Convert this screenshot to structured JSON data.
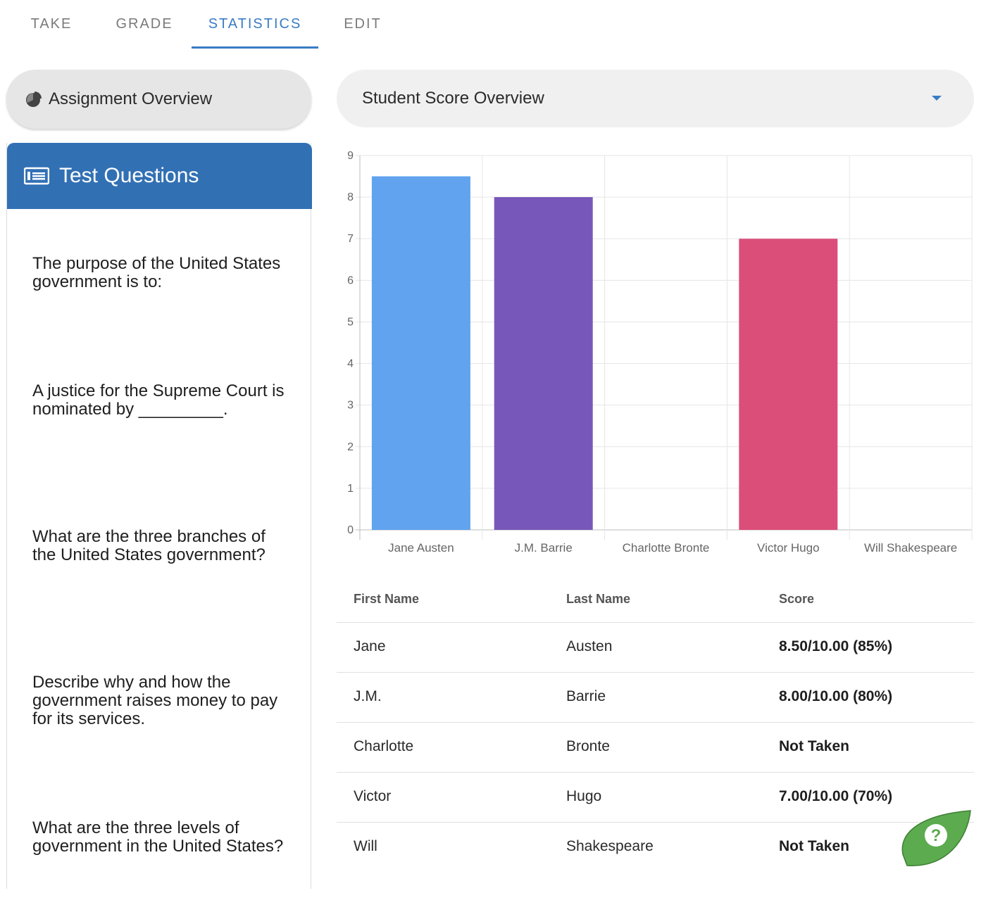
{
  "tabs": [
    {
      "label": "TAKE",
      "active": false
    },
    {
      "label": "GRADE",
      "active": false
    },
    {
      "label": "STATISTICS",
      "active": true
    },
    {
      "label": "EDIT",
      "active": false
    }
  ],
  "assignment_overview": {
    "label": "Assignment Overview",
    "icon": "pie-chart-icon"
  },
  "score_selector": {
    "selected": "Student Score Overview",
    "icon": "caret-down-icon"
  },
  "questions_panel": {
    "title": "Test Questions",
    "icon": "list-card-icon",
    "questions": [
      "The purpose of the United States government is to:",
      "A justice for the Supreme Court is nominated by _________.",
      "What are the three branches of the United States government?",
      "Describe why and how the government raises money to pay for its services.",
      "What are the three levels of government in the United States?"
    ]
  },
  "chart_data": {
    "type": "bar",
    "categories": [
      "Jane Austen",
      "J.M. Barrie",
      "Charlotte Bronte",
      "Victor Hugo",
      "Will Shakespeare"
    ],
    "values": [
      8.5,
      8,
      0,
      7,
      0
    ],
    "colors": [
      "#61a3ef",
      "#7857ba",
      "#e0e0e0",
      "#dc4e7a",
      "#e0e0e0"
    ],
    "ylim": [
      0,
      9
    ],
    "yticks": [
      0,
      1,
      2,
      3,
      4,
      5,
      6,
      7,
      8,
      9
    ],
    "grid": true,
    "title": "",
    "xlabel": "",
    "ylabel": ""
  },
  "table": {
    "headers": [
      "First Name",
      "Last Name",
      "Score"
    ],
    "rows": [
      [
        "Jane",
        "Austen",
        "8.50/10.00 (85%)"
      ],
      [
        "J.M.",
        "Barrie",
        "8.00/10.00 (80%)"
      ],
      [
        "Charlotte",
        "Bronte",
        "Not Taken"
      ],
      [
        "Victor",
        "Hugo",
        "7.00/10.00 (70%)"
      ],
      [
        "Will",
        "Shakespeare",
        "Not Taken"
      ]
    ]
  },
  "help_button": {
    "icon": "help-question-icon",
    "color": "#5cab4f"
  },
  "accent_color": "#3a7cc4"
}
